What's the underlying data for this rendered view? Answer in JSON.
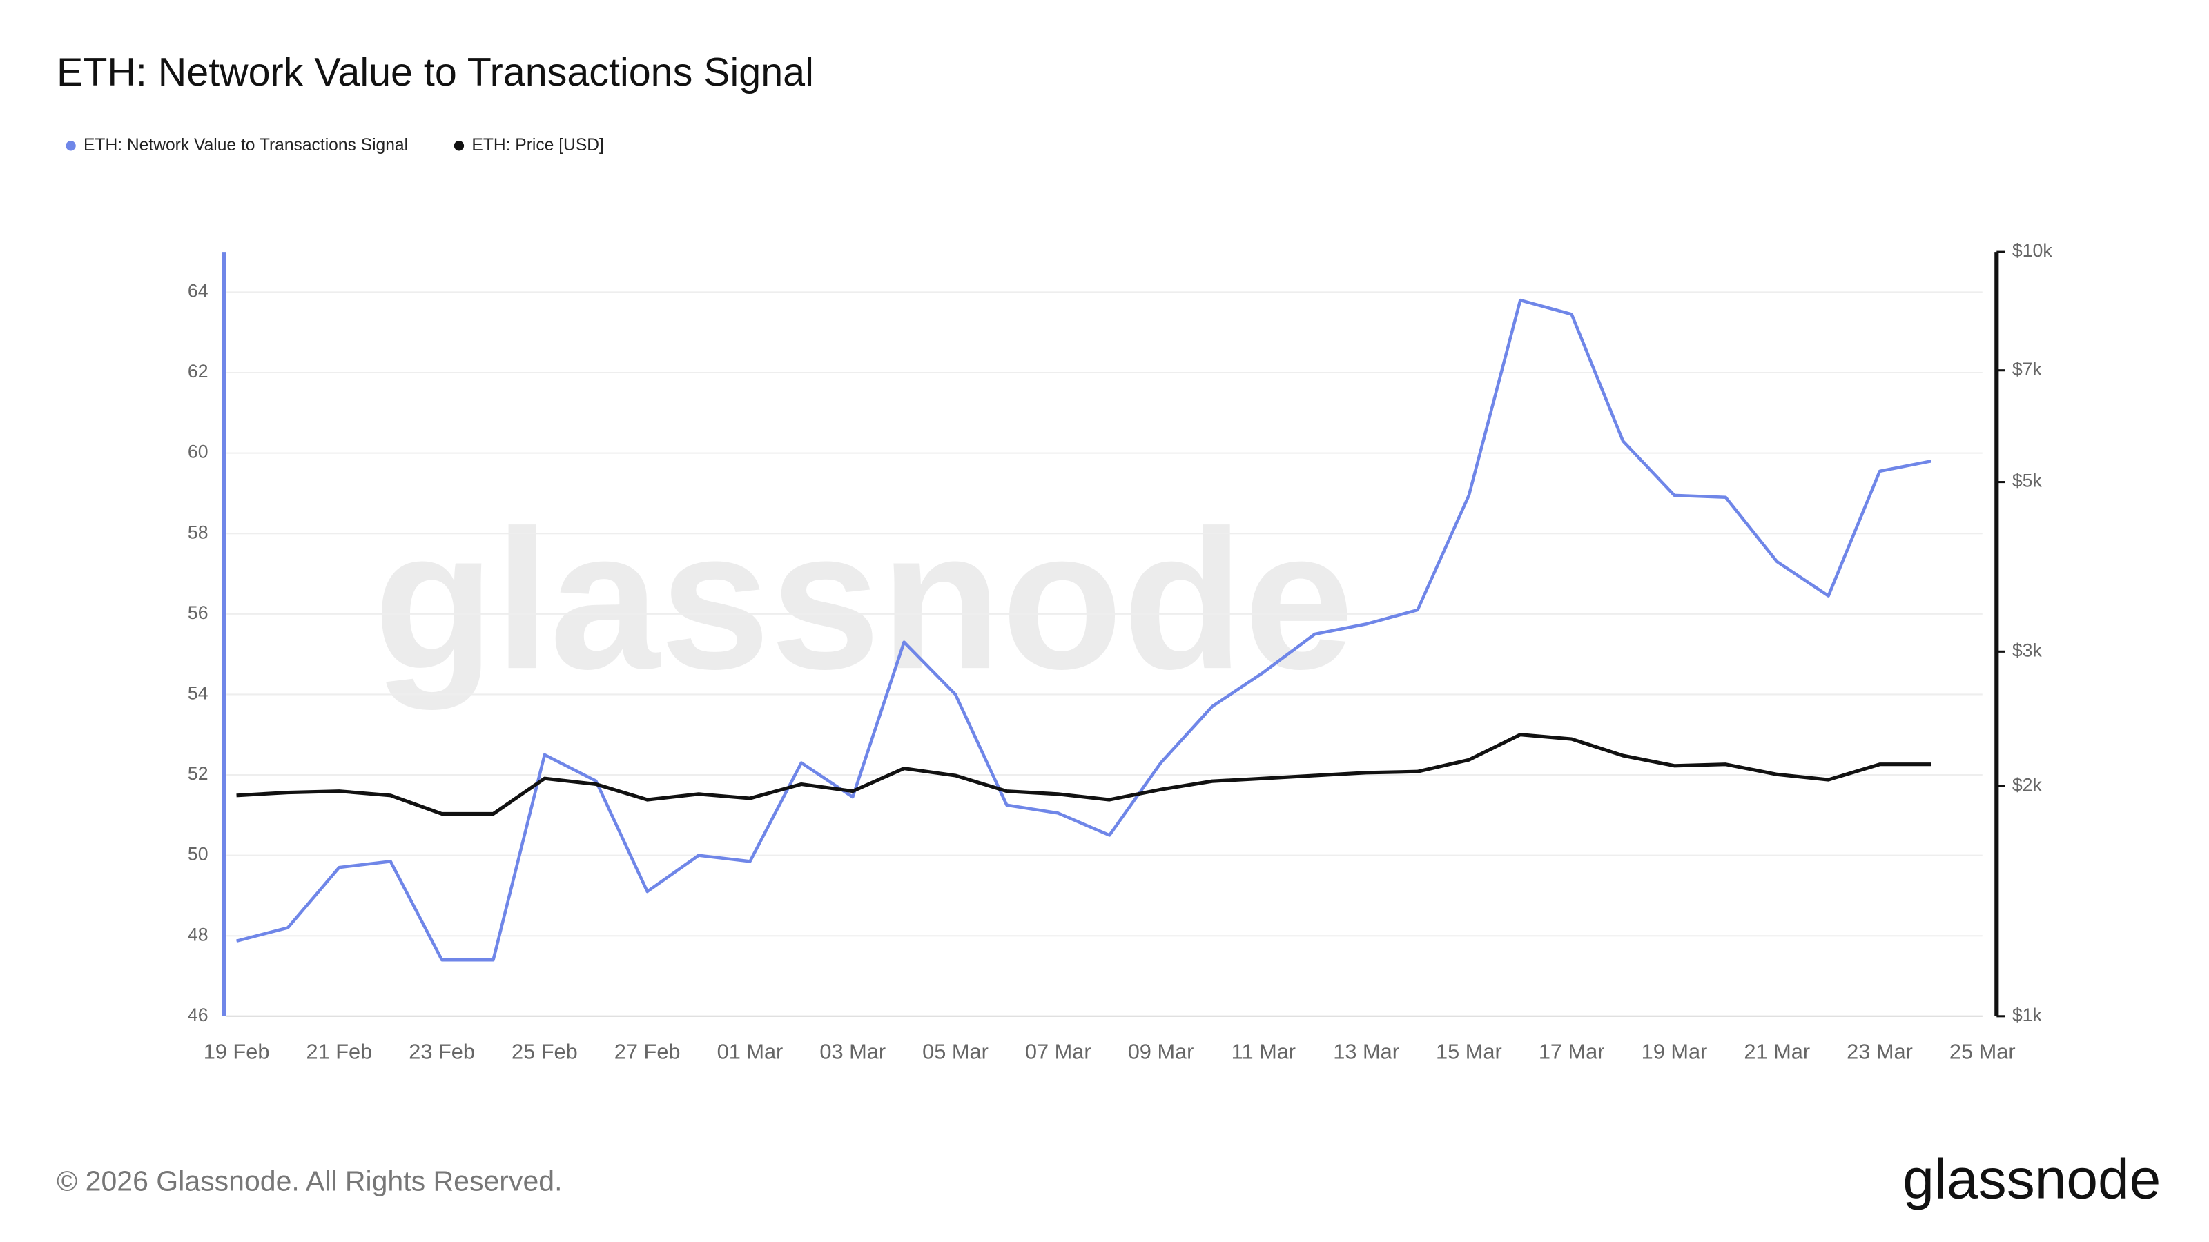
{
  "chart_data": {
    "type": "line",
    "title": "ETH: Network Value to Transactions Signal",
    "categories": [
      "19 Feb",
      null,
      "21 Feb",
      null,
      "23 Feb",
      null,
      "25 Feb",
      null,
      "27 Feb",
      null,
      "01 Mar",
      null,
      "03 Mar",
      null,
      "05 Mar",
      null,
      "07 Mar",
      null,
      "09 Mar",
      null,
      "11 Mar",
      null,
      "13 Mar",
      null,
      "15 Mar",
      null,
      "17 Mar",
      null,
      "19 Mar",
      null,
      "21 Mar",
      null,
      "23 Mar",
      null,
      "25 Mar"
    ],
    "series": [
      {
        "name": "ETH: Network Value to Transactions Signal",
        "color": "#6f86e8",
        "values": [
          47.87,
          48.2,
          49.7,
          49.85,
          47.4,
          47.4,
          52.5,
          51.85,
          49.1,
          50.0,
          49.85,
          52.3,
          51.45,
          55.3,
          54.0,
          51.25,
          51.05,
          50.5,
          52.3,
          53.7,
          54.55,
          55.5,
          55.75,
          56.1,
          58.95,
          63.8,
          63.45,
          60.3,
          58.95,
          58.9,
          57.3,
          56.45,
          59.55,
          59.8,
          null
        ]
      },
      {
        "name": "ETH: Price [USD]",
        "color": "#111111",
        "axis": "y2",
        "values": [
          1945,
          1962,
          1970,
          1945,
          1840,
          1840,
          2047,
          2012,
          1920,
          1953,
          1928,
          2012,
          1970,
          2110,
          2065,
          1970,
          1953,
          1920,
          1980,
          2030,
          2047,
          2065,
          2083,
          2090,
          2165,
          2336,
          2305,
          2193,
          2127,
          2136,
          2072,
          2039,
          2136,
          2136,
          null
        ]
      }
    ],
    "ylim": [
      46,
      65
    ],
    "yticks": [
      46,
      48,
      50,
      52,
      54,
      56,
      58,
      60,
      62,
      64
    ],
    "y2lim": [
      1000,
      10000
    ],
    "y2log": true,
    "y2ticks": [
      {
        "value": 1000,
        "label": "$1k"
      },
      {
        "value": 2000,
        "label": "$2k"
      },
      {
        "value": 3000,
        "label": "$3k"
      },
      {
        "value": 5000,
        "label": "$5k"
      },
      {
        "value": 7000,
        "label": "$7k"
      },
      {
        "value": 10000,
        "label": "$10k"
      }
    ],
    "grid": true,
    "watermark": "glassnode",
    "footer": "© 2026 Glassnode. All Rights Reserved.",
    "logo": "glassnode"
  }
}
